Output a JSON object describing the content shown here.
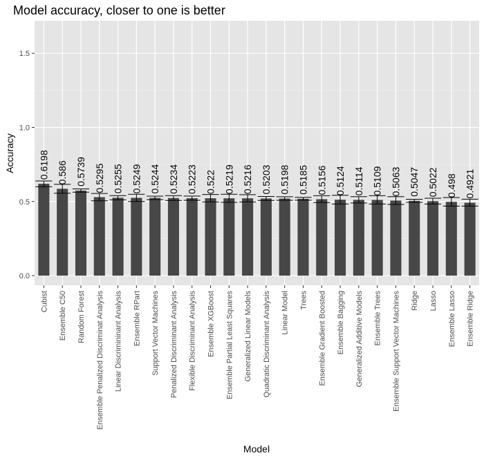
{
  "chart_data": {
    "type": "bar",
    "title": "Model accuracy, closer to one is better",
    "xlabel": "Model",
    "ylabel": "Accuracy",
    "ylim": [
      -0.065,
      1.72
    ],
    "yticks": [
      0.0,
      0.5,
      1.0,
      1.5
    ],
    "ytick_labels": [
      "0.0",
      "0.5",
      "1.0",
      "1.5"
    ],
    "grid": true,
    "categories": [
      "Cubist",
      "Ensemble C50",
      "Random Forest",
      "Ensemble Penalized Discriminat Analysis",
      "Linear Discrimininant Analysis",
      "Ensemble RPart",
      "Support Vector Machines",
      "Penalized Discriminant Analysis",
      "Flexible Discriminant Analysis",
      "Ensemble XGBoost",
      "Ensemble Partial Least Squares",
      "Generalized Linear Models",
      "Quadratic Discriminant Analysis",
      "Linear Model",
      "Trees",
      "Ensemble Gradient Boosted",
      "Ensemble Bagging",
      "Generalized Additive Models",
      "Ensemble Trees",
      "Ensemble Support Vector Machines",
      "Ridge",
      "Lasso",
      "Ensemble Lasso",
      "Ensemble Ridge"
    ],
    "values": [
      0.6198,
      0.586,
      0.5739,
      0.5295,
      0.5255,
      0.5249,
      0.5244,
      0.5234,
      0.5223,
      0.522,
      0.5219,
      0.5216,
      0.5203,
      0.5198,
      0.5185,
      0.5156,
      0.5124,
      0.5114,
      0.5109,
      0.5063,
      0.5047,
      0.5022,
      0.498,
      0.4921
    ],
    "value_labels": [
      "0.6198",
      "0.586",
      "0.5739",
      "0.5295",
      "0.5255",
      "0.5249",
      "0.5244",
      "0.5234",
      "0.5223",
      "0.522",
      "0.5219",
      "0.5216",
      "0.5203",
      "0.5198",
      "0.5185",
      "0.5156",
      "0.5124",
      "0.5114",
      "0.5109",
      "0.5063",
      "0.5047",
      "0.5022",
      "0.498",
      "0.4921"
    ],
    "error_low": [
      0.6,
      0.556,
      0.563,
      0.505,
      0.512,
      0.5,
      0.513,
      0.507,
      0.508,
      0.497,
      0.495,
      0.497,
      0.507,
      0.508,
      0.509,
      0.493,
      0.483,
      0.49,
      0.483,
      0.48,
      0.495,
      0.483,
      0.469,
      0.469
    ],
    "error_high": [
      0.639,
      0.616,
      0.585,
      0.554,
      0.54,
      0.549,
      0.536,
      0.54,
      0.537,
      0.547,
      0.549,
      0.546,
      0.534,
      0.532,
      0.528,
      0.539,
      0.542,
      0.533,
      0.539,
      0.533,
      0.515,
      0.522,
      0.527,
      0.516
    ],
    "colors": {
      "panel": "#e5e5e5",
      "grid_major": "#ffffff",
      "grid_minor": "#f0f0f0",
      "bar": "#474747",
      "errorbar": "#000000",
      "tick": "#333333"
    }
  }
}
